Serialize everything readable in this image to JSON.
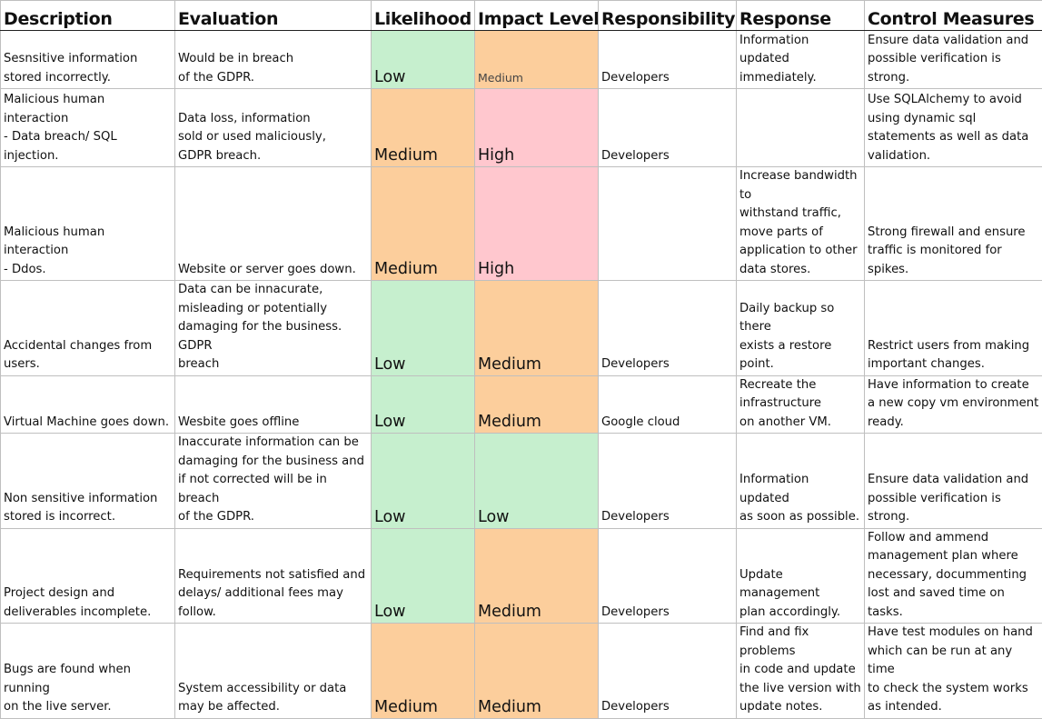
{
  "headers": {
    "description": "Description",
    "evaluation": "Evaluation",
    "likelihood": "Likelihood",
    "impact": "Impact Level",
    "responsibility": "Responsibility",
    "response": "Response",
    "control": "Control Measures"
  },
  "rows": [
    {
      "description": "Sesnsitive information\nstored incorrectly.",
      "evaluation": "Would be in breach\nof the GDPR.",
      "likelihood": "Low",
      "impact": "Medium",
      "responsibility": "Developers",
      "response": "Information updated\nimmediately.",
      "control": "Ensure data validation and\npossible verification is\nstrong."
    },
    {
      "description": "Malicious human interaction\n- Data breach/ SQL injection.",
      "evaluation": "Data loss, information\nsold or used maliciously,\nGDPR breach.",
      "likelihood": "Medium",
      "impact": "High",
      "responsibility": "Developers",
      "response": "",
      "control": "Use SQLAlchemy to avoid\nusing dynamic sql\nstatements as well as data\nvalidation."
    },
    {
      "description": "Malicious human interaction\n- Ddos.",
      "evaluation": "Website or server goes down.",
      "likelihood": "Medium",
      "impact": "High",
      "responsibility": "",
      "response": "Increase bandwidth\nto\nwithstand traffic,\nmove parts of\napplication to other\ndata stores.",
      "control": "Strong firewall and ensure\ntraffic is monitored for spikes."
    },
    {
      "description": "Accidental changes from\nusers.",
      "evaluation": "Data can be innacurate,\nmisleading or potentially\ndamaging for the business. GDPR\nbreach",
      "likelihood": "Low",
      "impact": "Medium",
      "responsibility": "Developers",
      "response": "Daily backup so there\nexists a restore point.",
      "control": "Restrict users from making\nimportant changes."
    },
    {
      "description": "Virtual Machine goes down.",
      "evaluation": "Wesbite goes offline",
      "likelihood": "Low",
      "impact": "Medium",
      "responsibility": "Google cloud",
      "response": "Recreate the\ninfrastructure\non another VM.",
      "control": "Have information to create\na new copy vm environment\nready."
    },
    {
      "description": "Non sensitive information\nstored is  incorrect.",
      "evaluation": "Inaccurate information can be\ndamaging for the business and\nif not corrected will be in breach\nof the GDPR.",
      "likelihood": "Low",
      "impact": "Low",
      "responsibility": "Developers",
      "response": "Information updated\nas soon as possible.",
      "control": "Ensure data validation and\npossible verification is\nstrong."
    },
    {
      "description": "Project design and\ndeliverables incomplete.",
      "evaluation": "Requirements not satisfied and\ndelays/ additional fees may\nfollow.",
      "likelihood": "Low",
      "impact": "Medium",
      "responsibility": "Developers",
      "response": "Update management\nplan accordingly.",
      "control": "Follow and ammend\nmanagement plan where\nnecessary, docummenting\nlost and saved time on tasks."
    },
    {
      "description": "Bugs are found when running\non the live server.",
      "evaluation": "System accessibility or data\nmay be affected.",
      "likelihood": "Medium",
      "impact": "Medium",
      "responsibility": "Developers",
      "response": "Find and fix problems\nin code and update\nthe live version with\nupdate notes.",
      "control": "Have test modules on hand\nwhich can be run at any time\nto check the system works\nas intended."
    }
  ],
  "colors": {
    "low": "#c6efce",
    "medium": "#fcce9c",
    "high": "#ffc7ce"
  }
}
